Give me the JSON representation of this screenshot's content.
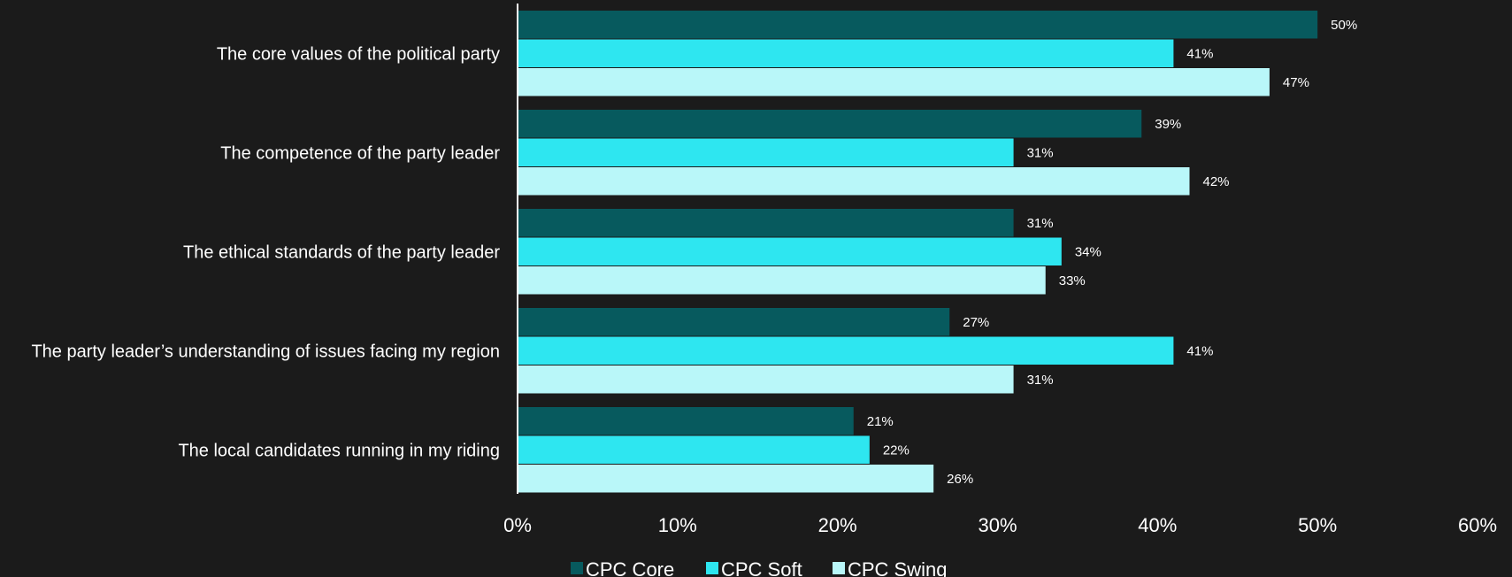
{
  "chart_data": {
    "type": "bar",
    "orientation": "horizontal",
    "categories": [
      "The core values of the political party",
      "The competence of the party leader",
      "The ethical standards of the party leader",
      "The party leader’s understanding of issues facing my region",
      "The local candidates running in my riding"
    ],
    "series": [
      {
        "name": "CPC Core",
        "color": "#075a5e",
        "values": [
          50,
          39,
          31,
          27,
          21
        ],
        "labels": [
          "50%",
          "39%",
          "31%",
          "27%",
          "21%"
        ]
      },
      {
        "name": "CPC Soft",
        "color": "#2ee6f0",
        "values": [
          41,
          31,
          34,
          41,
          22
        ],
        "labels": [
          "41%",
          "31%",
          "34%",
          "41%",
          "22%"
        ]
      },
      {
        "name": "CPC Swing",
        "color": "#b9f7f9",
        "values": [
          47,
          42,
          33,
          31,
          26
        ],
        "labels": [
          "47%",
          "42%",
          "33%",
          "31%",
          "26%"
        ]
      }
    ],
    "xlim": [
      0,
      60
    ],
    "x_ticks": [
      "0%",
      "10%",
      "20%",
      "30%",
      "40%",
      "50%",
      "60%"
    ],
    "grid": false,
    "legend_position": "bottom",
    "title": "",
    "xlabel": "",
    "ylabel": ""
  }
}
